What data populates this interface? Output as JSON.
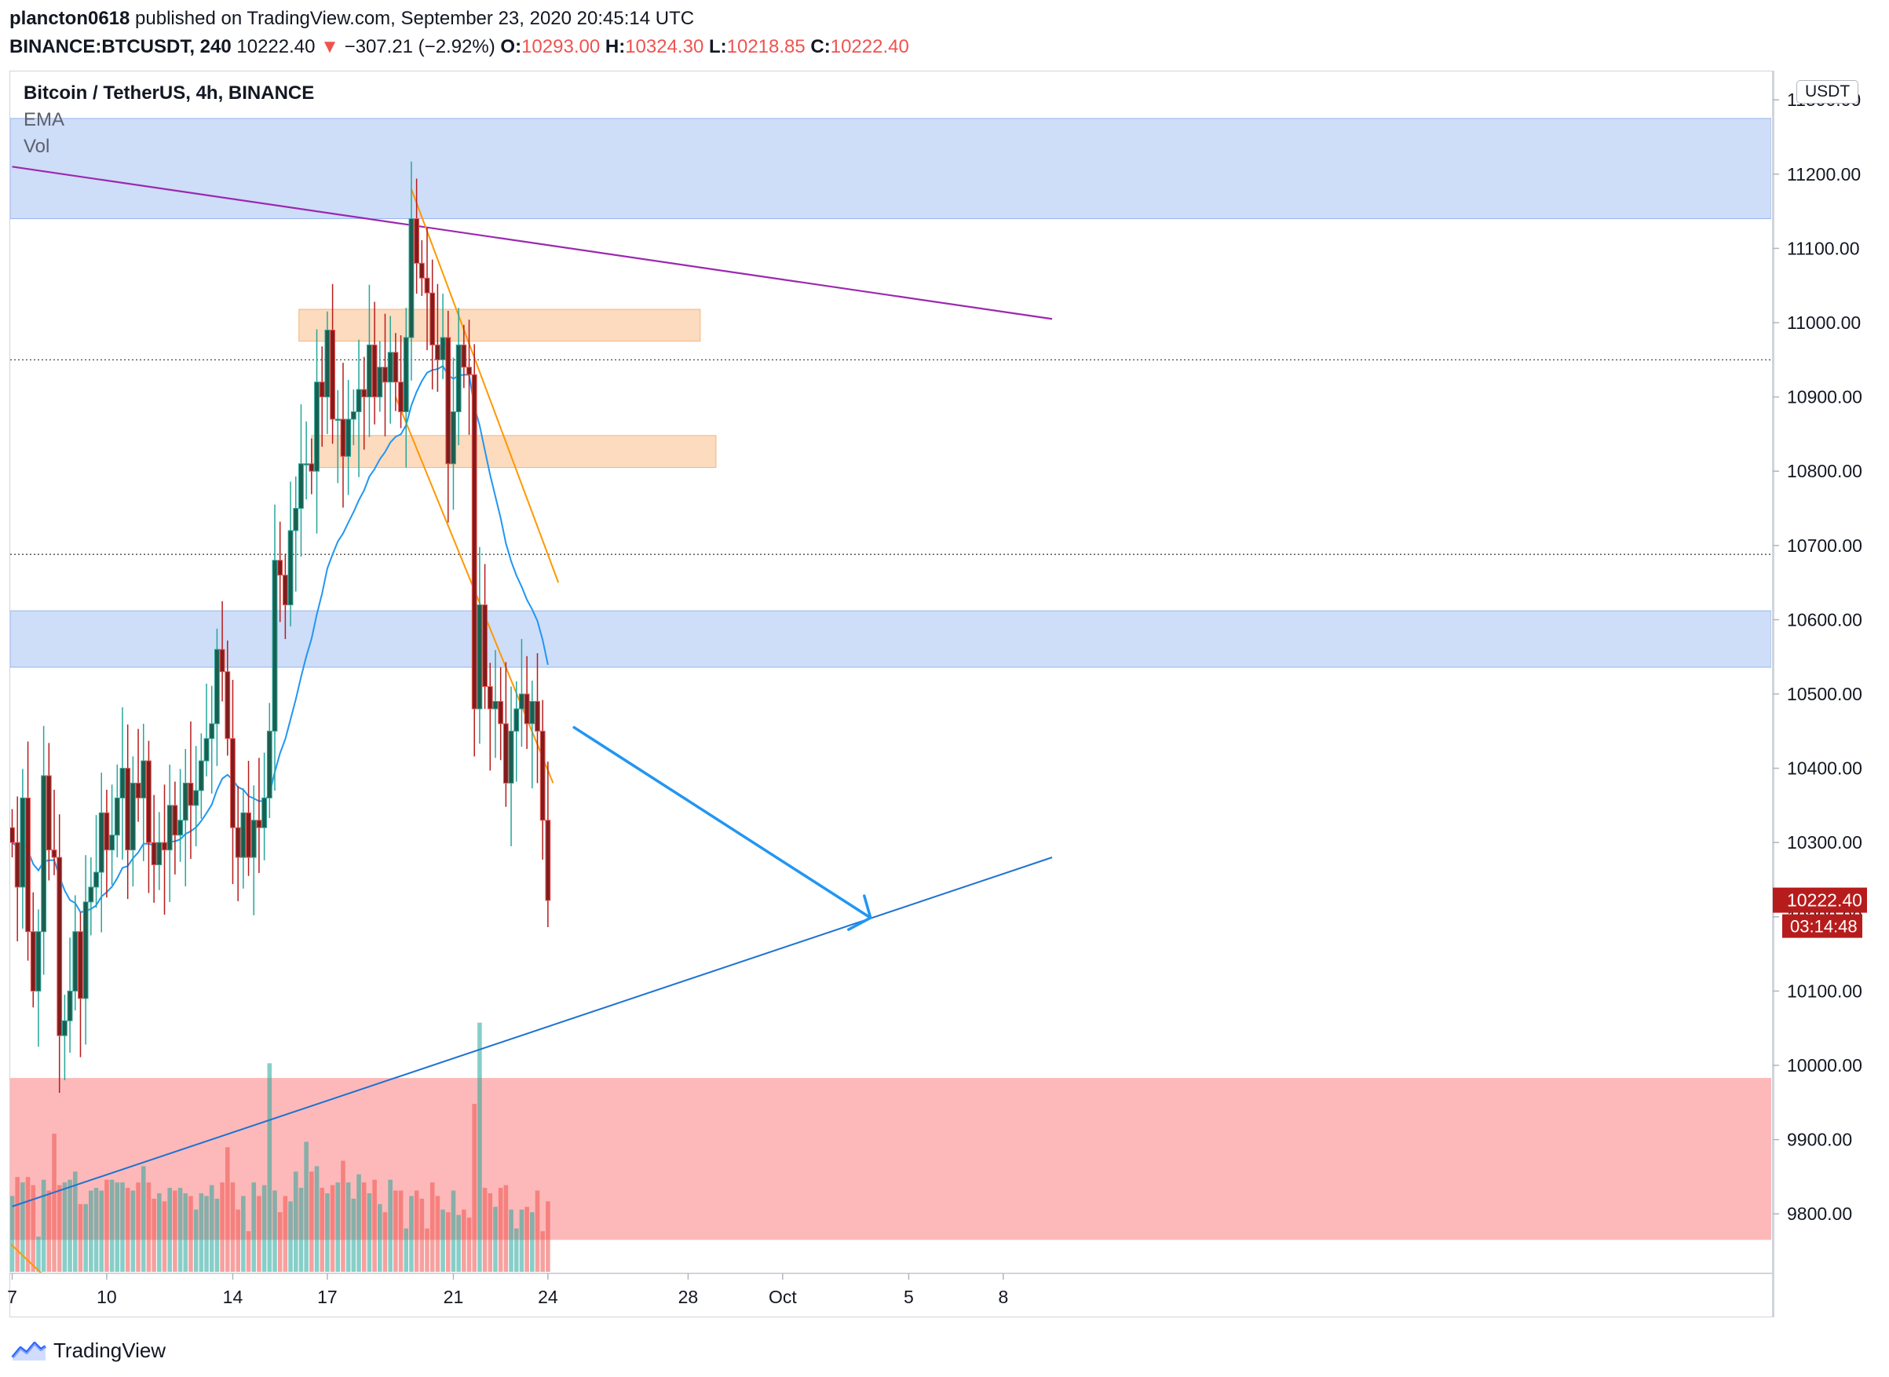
{
  "header": {
    "line1_user": "plancton0618",
    "line1_rest": " published on TradingView.com, September 23, 2020 20:45:14 UTC",
    "symbol": "BINANCE:BTCUSDT, 240",
    "last": "10222.40",
    "change_arrow": "▼",
    "change": "−307.21 (−2.92%)",
    "o_label": "O:",
    "o_value": "10293.00",
    "h_label": "H:",
    "h_value": "10324.30",
    "l_label": "L:",
    "l_value": "10218.85",
    "c_label": "C:",
    "c_value": "10222.40"
  },
  "legend": {
    "title": "Bitcoin / TetherUS, 4h, BINANCE",
    "ema": "EMA",
    "vol": "Vol"
  },
  "currency_button": "USDT",
  "footer": {
    "brand": "TradingView",
    "logo_icon": "tradingview-logo-icon"
  },
  "colors": {
    "up": "#26a69a",
    "down": "#ef5350",
    "ema": "#2196f3",
    "zone_blue": "#b3cbf5",
    "zone_orange": "#fbcfa8",
    "zone_red": "#fca1a2",
    "resistance": "#9c27b0",
    "support": "#1e72d2",
    "channel": "#ff9800",
    "arrow": "#2196f3"
  },
  "chart_data": {
    "type": "candlestick",
    "symbol": "BTCUSDT",
    "timeframe": "4h",
    "ylim": [
      9740,
      11300
    ],
    "y_ticks": [
      "9800.00",
      "9900.00",
      "10000.00",
      "10100.00",
      "10200.00",
      "10300.00",
      "10400.00",
      "10500.00",
      "10600.00",
      "10700.00",
      "10800.00",
      "10900.00",
      "11000.00",
      "11100.00",
      "11200.00",
      "11300.00"
    ],
    "x_ticks": [
      {
        "label": "7",
        "bar": 0
      },
      {
        "label": "10",
        "bar": 18
      },
      {
        "label": "14",
        "bar": 42
      },
      {
        "label": "17",
        "bar": 60
      },
      {
        "label": "21",
        "bar": 84
      },
      {
        "label": "24",
        "bar": 102
      },
      {
        "label": "28",
        "bar": 126
      },
      {
        "label": "Oct",
        "bar": 144
      },
      {
        "label": "5",
        "bar": 168
      },
      {
        "label": "8",
        "bar": 186
      }
    ],
    "last_price": "10222.40",
    "countdown": "03:14:48",
    "closes": [
      10300,
      10240,
      10360,
      10180,
      10100,
      10180,
      10390,
      10290,
      10280,
      10040,
      10060,
      10100,
      10180,
      10090,
      10220,
      10240,
      10260,
      10340,
      10290,
      10310,
      10360,
      10400,
      10290,
      10380,
      10360,
      10410,
      10300,
      10270,
      10300,
      10290,
      10350,
      10310,
      10330,
      10380,
      10350,
      10370,
      10410,
      10440,
      10460,
      10560,
      10530,
      10440,
      10320,
      10280,
      10340,
      10280,
      10330,
      10320,
      10360,
      10450,
      10680,
      10660,
      10620,
      10720,
      10750,
      10810,
      10810,
      10800,
      10920,
      10900,
      10990,
      10870,
      10870,
      10820,
      10870,
      10880,
      10910,
      10900,
      10970,
      10900,
      10940,
      10920,
      10960,
      10920,
      10880,
      10980,
      11140,
      11080,
      11060,
      11040,
      10970,
      10950,
      10980,
      10810,
      10880,
      10970,
      10940,
      10930,
      10480,
      10620,
      10510,
      10480,
      10490,
      10460,
      10380,
      10450,
      10480,
      10500,
      10460,
      10490,
      10450,
      10330,
      10222
    ],
    "volume_ylim": [
      0,
      1000
    ],
    "volumes": [
      280,
      350,
      330,
      350,
      320,
      130,
      340,
      300,
      510,
      320,
      330,
      340,
      370,
      250,
      250,
      300,
      310,
      300,
      340,
      340,
      330,
      330,
      310,
      300,
      330,
      390,
      330,
      270,
      290,
      260,
      310,
      300,
      310,
      290,
      280,
      230,
      290,
      280,
      320,
      270,
      330,
      460,
      330,
      230,
      280,
      150,
      330,
      280,
      320,
      770,
      300,
      220,
      280,
      260,
      370,
      310,
      480,
      370,
      390,
      310,
      290,
      320,
      330,
      410,
      330,
      270,
      360,
      330,
      290,
      340,
      250,
      220,
      340,
      300,
      300,
      160,
      280,
      300,
      270,
      160,
      330,
      280,
      230,
      220,
      300,
      210,
      230,
      200,
      620,
      920,
      310,
      290,
      240,
      310,
      320,
      230,
      160,
      230,
      240,
      220,
      300,
      150,
      260
    ],
    "ema_period": 20,
    "annotations": {
      "blue_zones": [
        [
          11140,
          11275
        ],
        [
          10536,
          10612
        ]
      ],
      "orange_zones": [
        [
          10975,
          11018
        ],
        [
          10805,
          10848
        ]
      ],
      "red_zone": [
        9765,
        9983
      ],
      "dotted_levels": [
        10950,
        10688
      ],
      "resistance_line": {
        "start": {
          "bar": 0,
          "price": 11210
        },
        "end": {
          "bar": 195,
          "price": 11005
        }
      },
      "support_line": {
        "start": {
          "bar": 0,
          "price": 9810
        },
        "end": {
          "bar": 195,
          "price": 10280
        }
      },
      "descending_channel": [
        {
          "start": {
            "bar": 76,
            "price": 11180
          },
          "end": {
            "bar": 101,
            "price": 10650
          }
        },
        {
          "start": {
            "bar": 73,
            "price": 10900
          },
          "end": {
            "bar": 100,
            "price": 10380
          }
        }
      ],
      "projection_arrow": {
        "start": {
          "bar": 101,
          "price": 10455
        },
        "end": {
          "bar": 141,
          "price": 10150
        }
      }
    }
  }
}
